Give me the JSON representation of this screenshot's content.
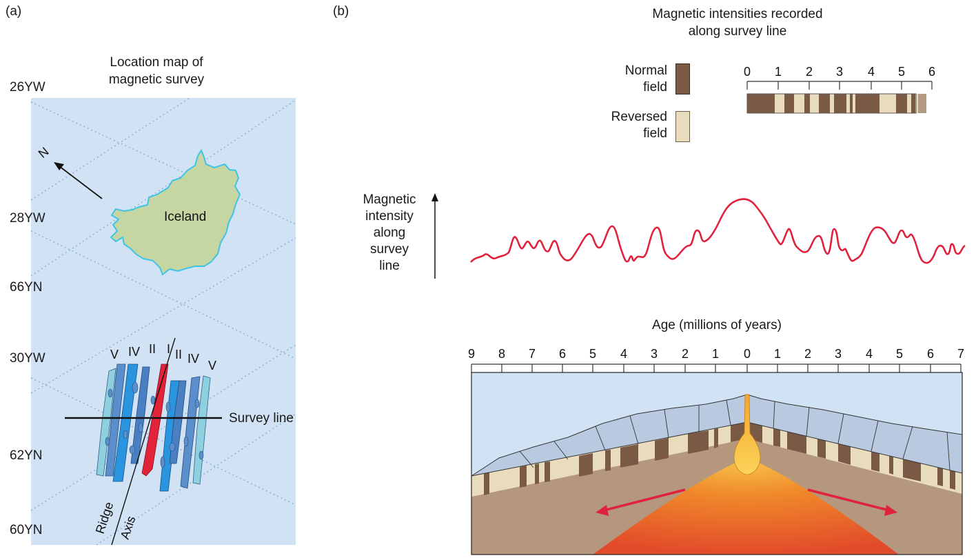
{
  "panel_a": {
    "letter": "(a)",
    "title_line1": "Location map of",
    "title_line2": "magnetic survey",
    "lat_lon_labels": [
      "26YW",
      "28YW",
      "66YN",
      "30YW",
      "62YN",
      "60YN"
    ],
    "north": "N",
    "island": "Iceland",
    "stripe_labels_left": [
      "V",
      "IV",
      "II",
      "I"
    ],
    "stripe_labels_right": [
      "II",
      "IV",
      "V"
    ],
    "survey_line": "Survey line",
    "ridge": "Ridge",
    "axis": "Axis"
  },
  "panel_b": {
    "letter": "(b)",
    "header_line1": "Magnetic intensities recorded",
    "header_line2": "along survey line",
    "legend": {
      "normal_line1": "Normal",
      "normal_line2": "field",
      "reversed_line1": "Reversed",
      "reversed_line2": "field",
      "normal_color": "#7b5a45",
      "reversed_color": "#e9dcbc"
    },
    "scale_ticks": [
      "0",
      "1",
      "2",
      "3",
      "4",
      "5",
      "6"
    ],
    "intensity_label": [
      "Magnetic",
      "intensity",
      "along",
      "survey",
      "line"
    ],
    "age_title": "Age (millions of years)",
    "age_ticks": [
      "9",
      "8",
      "7",
      "6",
      "5",
      "4",
      "3",
      "2",
      "1",
      "0",
      "1",
      "2",
      "3",
      "4",
      "5",
      "6",
      "7"
    ],
    "curve_color": "#e0223c"
  }
}
